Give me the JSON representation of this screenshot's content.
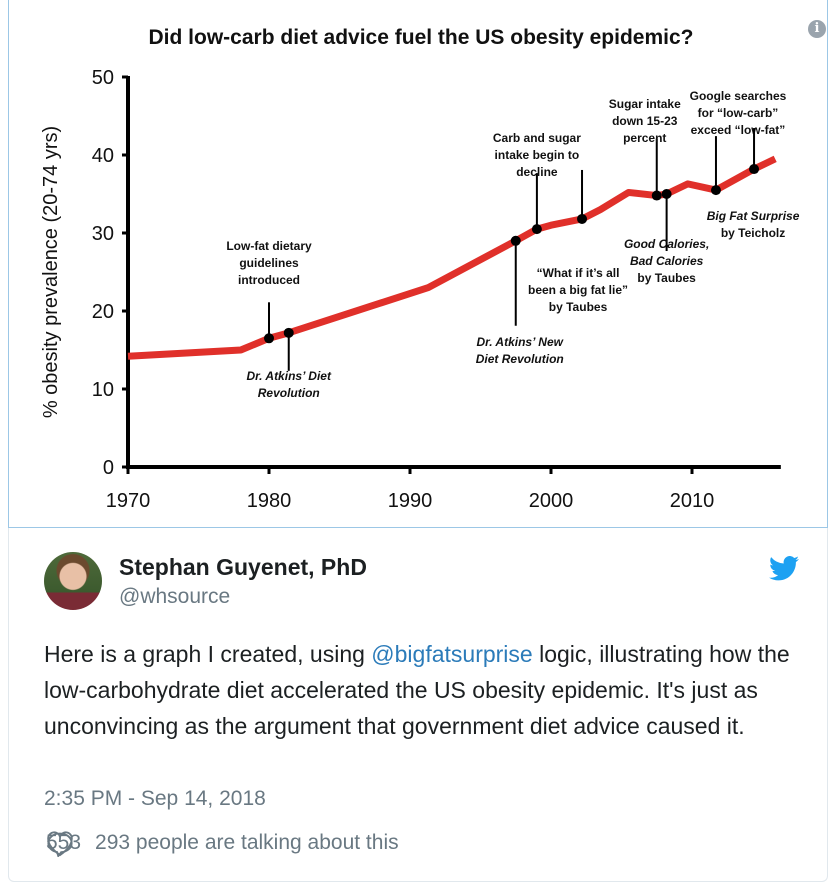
{
  "chart_data": {
    "type": "line",
    "title": "Did low-carb diet advice fuel the US obesity epidemic?",
    "xlabel": "",
    "ylabel": "% obesity prevalence (20-74 yrs)",
    "xlim": [
      1970,
      2016
    ],
    "ylim": [
      0,
      50
    ],
    "xticks": [
      1970,
      1980,
      1990,
      2000,
      2010
    ],
    "yticks": [
      0,
      10,
      20,
      30,
      40,
      50
    ],
    "grid": false,
    "line_color": "#e0302a",
    "series": [
      {
        "x": [
          1970,
          1978,
          1980,
          1981.4,
          1991.3,
          1997.5,
          1999,
          2000,
          2002.2,
          2003.5,
          2005.5,
          2007.5,
          2008.2,
          2009.7,
          2011.7,
          2014.4,
          2015.9
        ],
        "y": [
          14.2,
          15,
          16.5,
          17.2,
          23,
          29,
          30.5,
          31,
          31.8,
          33,
          35.2,
          34.8,
          35,
          36.3,
          35.5,
          38.2,
          39.5
        ]
      }
    ],
    "annotations": [
      {
        "x": 1980,
        "y": 16.5,
        "lines": [
          "Low-fat dietary",
          "guidelines",
          "introduced"
        ],
        "italic": false
      },
      {
        "x": 1981.4,
        "y": 17.2,
        "lines": [
          "Dr. Atkins’ Diet",
          "Revolution"
        ],
        "italic": true
      },
      {
        "x": 1997.5,
        "y": 29,
        "lines": [
          "Dr. Atkins’ New",
          "Diet Revolution"
        ],
        "italic": true
      },
      {
        "x": 1999,
        "y": 30.5,
        "lines": [
          "Carb and sugar",
          "intake begin to",
          "decline"
        ],
        "italic": false
      },
      {
        "x": 2002.2,
        "y": 31.8,
        "lines": [
          "“What if it’s all",
          "been a big fat lie”",
          "by Taubes"
        ],
        "italic": false
      },
      {
        "x": 2007.5,
        "y": 34.8,
        "lines": [
          "Sugar intake",
          "down 15-23",
          "percent"
        ],
        "italic": false
      },
      {
        "x": 2008.2,
        "y": 35,
        "lines": [
          "Good Calories,",
          "Bad Calories",
          "by Taubes"
        ],
        "italic": true,
        "last_plain": true
      },
      {
        "x": 2011.7,
        "y": 35.5,
        "lines": [
          "Google searches",
          "for “low-carb”",
          "exceed “low-fat”"
        ],
        "italic": false
      },
      {
        "x": 2014.4,
        "y": 38.2,
        "lines": [
          "Big Fat Surprise",
          "by Teicholz"
        ],
        "italic": true,
        "last_plain": true
      }
    ]
  },
  "tweet": {
    "author_name": "Stephan Guyenet, PhD",
    "handle": "@whsource",
    "text_before": "Here is a graph I created, using ",
    "mention": "@bigfatsurprise",
    "text_after": " logic, illustrating how the low-carbohydrate diet accelerated the US obesity epidemic.  It's just as unconvincing as the argument that government diet advice caused it.",
    "timestamp": "2:35 PM - Sep 14, 2018",
    "likes": "553",
    "talking": "293 people are talking about this",
    "accent": "#1da1f2",
    "link_color": "#2b7bb9"
  },
  "icons": {
    "info": "i"
  }
}
